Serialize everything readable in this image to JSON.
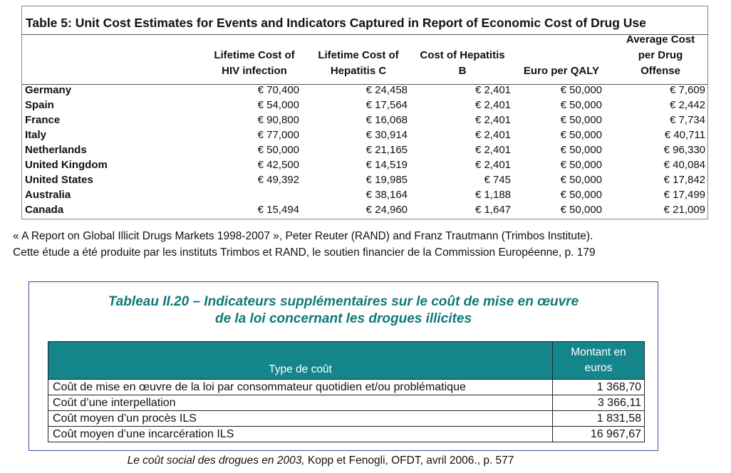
{
  "table5": {
    "title": "Table 5:  Unit Cost Estimates for Events and Indicators Captured in Report of Economic Cost of Drug Use",
    "headers": {
      "hiv": [
        "Lifetime Cost of",
        "HIV infection"
      ],
      "hepc": [
        "Lifetime Cost of",
        "Hepatitis C"
      ],
      "hepb": [
        "Cost of Hepatitis",
        "B"
      ],
      "qaly": [
        "Euro per QALY"
      ],
      "offense": [
        "Average Cost",
        "per Drug",
        "Offense"
      ]
    },
    "rows": [
      {
        "country": "Germany",
        "hiv": "€ 70,400",
        "hepc": "€ 24,458",
        "hepb": "€ 2,401",
        "qaly": "€ 50,000",
        "offense": "€ 7,609"
      },
      {
        "country": "Spain",
        "hiv": "€ 54,000",
        "hepc": "€ 17,564",
        "hepb": "€ 2,401",
        "qaly": "€ 50,000",
        "offense": "€ 2,442"
      },
      {
        "country": "France",
        "hiv": "€ 90,800",
        "hepc": "€ 16,068",
        "hepb": "€ 2,401",
        "qaly": "€ 50,000",
        "offense": "€ 7,734"
      },
      {
        "country": "Italy",
        "hiv": "€ 77,000",
        "hepc": "€ 30,914",
        "hepb": "€ 2,401",
        "qaly": "€ 50,000",
        "offense": "€ 40,711"
      },
      {
        "country": "Netherlands",
        "hiv": "€ 50,000",
        "hepc": "€ 21,165",
        "hepb": "€ 2,401",
        "qaly": "€ 50,000",
        "offense": "€ 96,330"
      },
      {
        "country": "United Kingdom",
        "hiv": "€ 42,500",
        "hepc": "€ 14,519",
        "hepb": "€ 2,401",
        "qaly": "€ 50,000",
        "offense": "€ 40,084"
      },
      {
        "country": "United States",
        "hiv": "€ 49,392",
        "hepc": "€ 19,985",
        "hepb": "€ 745",
        "qaly": "€ 50,000",
        "offense": "€ 17,842"
      },
      {
        "country": "Australia",
        "hiv": "",
        "hepc": "€ 38,164",
        "hepb": "€ 1,188",
        "qaly": "€ 50,000",
        "offense": "€ 17,499"
      },
      {
        "country": "Canada",
        "hiv": "€ 15,494",
        "hepc": "€ 24,960",
        "hepb": "€ 1,647",
        "qaly": "€ 50,000",
        "offense": "€ 21,009"
      }
    ]
  },
  "citation1": {
    "line1": "« A Report on Global Illicit Drugs Markets 1998-2007 », Peter Reuter (RAND) and Franz Trautmann (Trimbos Institute).",
    "line2": "Cette étude a été produite par les instituts Trimbos et RAND, le soutien financier de la Commission Européenne, p. 179"
  },
  "table2": {
    "title_line1": "Tableau II.20 – Indicateurs supplémentaires sur le coût de mise en œuvre",
    "title_line2": "de la loi concernant les drogues illicites",
    "header_type": "Type de coût",
    "header_amount_line1": "Montant en",
    "header_amount_line2": "euros",
    "rows": [
      {
        "type": "Coût de mise en œuvre de la loi par consommateur quotidien et/ou problématique",
        "amount": "1 368,70"
      },
      {
        "type": "Coût d’une interpellation",
        "amount": "3 366,11"
      },
      {
        "type": "Coût moyen d’un procès ILS",
        "amount": "1 831,58"
      },
      {
        "type": "Coût moyen d’une incarcération ILS",
        "amount": "16 967,67"
      }
    ]
  },
  "citation2": {
    "title": "Le coût social des drogues en 2003,",
    "rest": " Kopp et Fenogli, OFDT, avril 2006., p. 577"
  }
}
